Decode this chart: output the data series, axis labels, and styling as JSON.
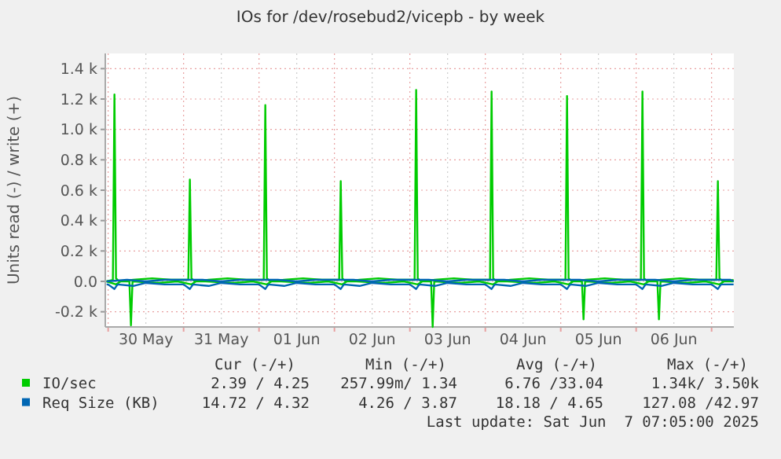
{
  "chart_data": {
    "type": "line",
    "title": "IOs for /dev/rosebud2/vicepb - by week",
    "ylabel": "Units read (-) / write (+)",
    "xlim": [
      "2025-05-29T23:05",
      "2025-06-07T07:05"
    ],
    "xticks": [
      {
        "value": "2025-05-30T00:00",
        "label": null
      },
      {
        "value": "2025-05-30T12:00",
        "label": "30 May"
      },
      {
        "value": "2025-05-31T00:00",
        "label": null
      },
      {
        "value": "2025-05-31T12:00",
        "label": "31 May"
      },
      {
        "value": "2025-06-01T00:00",
        "label": null
      },
      {
        "value": "2025-06-01T12:00",
        "label": "01 Jun"
      },
      {
        "value": "2025-06-02T00:00",
        "label": null
      },
      {
        "value": "2025-06-02T12:00",
        "label": "02 Jun"
      },
      {
        "value": "2025-06-03T00:00",
        "label": null
      },
      {
        "value": "2025-06-03T12:00",
        "label": "03 Jun"
      },
      {
        "value": "2025-06-04T00:00",
        "label": null
      },
      {
        "value": "2025-06-04T12:00",
        "label": "04 Jun"
      },
      {
        "value": "2025-06-05T00:00",
        "label": null
      },
      {
        "value": "2025-06-05T12:00",
        "label": "05 Jun"
      },
      {
        "value": "2025-06-06T00:00",
        "label": null
      },
      {
        "value": "2025-06-06T12:00",
        "label": "06 Jun"
      },
      {
        "value": "2025-06-07T00:00",
        "label": null
      }
    ],
    "ylim": [
      -300,
      1500
    ],
    "yticks": [
      {
        "value": -200,
        "label": "-0.2 k"
      },
      {
        "value": 0,
        "label": "0.0"
      },
      {
        "value": 200,
        "label": "0.2 k"
      },
      {
        "value": 400,
        "label": "0.4 k"
      },
      {
        "value": 600,
        "label": "0.6 k"
      },
      {
        "value": 800,
        "label": "0.8 k"
      },
      {
        "value": 1000,
        "label": "1.0 k"
      },
      {
        "value": 1200,
        "label": "1.2 k"
      },
      {
        "value": 1400,
        "label": "1.4 k"
      }
    ],
    "grid": true,
    "legend": "bottom",
    "line_style": "solid",
    "series": [
      {
        "name": "IO/sec",
        "color": "#00cc00",
        "x": [
          "2025-05-29T23:30",
          "2025-05-30T01:30",
          "2025-05-30T02:00",
          "2025-05-30T02:30",
          "2025-05-30T03:30",
          "2025-05-30T08:00",
          "2025-05-30T14:00",
          "2025-05-30T20:00",
          "2025-05-31T01:30",
          "2025-05-31T02:00",
          "2025-05-31T02:30",
          "2025-05-31T03:30",
          "2025-05-31T08:00",
          "2025-05-31T14:00",
          "2025-05-31T20:00",
          "2025-06-01T01:30",
          "2025-06-01T02:00",
          "2025-06-01T02:30",
          "2025-06-01T03:30",
          "2025-06-01T08:00",
          "2025-06-01T14:00",
          "2025-06-01T20:00",
          "2025-06-02T01:30",
          "2025-06-02T02:00",
          "2025-06-02T02:30",
          "2025-06-02T03:30",
          "2025-06-02T08:00",
          "2025-06-02T14:00",
          "2025-06-02T20:00",
          "2025-06-03T01:30",
          "2025-06-03T02:00",
          "2025-06-03T02:30",
          "2025-06-03T03:30",
          "2025-06-03T08:00",
          "2025-06-03T14:00",
          "2025-06-03T20:00",
          "2025-06-04T01:30",
          "2025-06-04T02:00",
          "2025-06-04T02:30",
          "2025-06-04T03:30",
          "2025-06-04T08:00",
          "2025-06-04T14:00",
          "2025-06-04T20:00",
          "2025-06-05T01:30",
          "2025-06-05T02:00",
          "2025-06-05T02:30",
          "2025-06-05T03:30",
          "2025-06-05T08:00",
          "2025-06-05T14:00",
          "2025-06-05T20:00",
          "2025-06-06T01:30",
          "2025-06-06T02:00",
          "2025-06-06T02:30",
          "2025-06-06T03:30",
          "2025-06-06T08:00",
          "2025-06-06T14:00",
          "2025-06-06T20:00",
          "2025-06-07T01:30",
          "2025-06-07T02:00",
          "2025-06-07T02:30",
          "2025-06-07T03:30",
          "2025-06-07T07:00"
        ],
        "values": [
          0,
          10,
          1230,
          20,
          0,
          10,
          20,
          10,
          10,
          670,
          20,
          0,
          10,
          20,
          10,
          10,
          1160,
          20,
          0,
          10,
          20,
          10,
          10,
          660,
          20,
          0,
          10,
          20,
          10,
          10,
          1260,
          20,
          0,
          10,
          20,
          10,
          10,
          1250,
          20,
          0,
          10,
          20,
          10,
          10,
          1220,
          20,
          0,
          10,
          20,
          10,
          10,
          1250,
          20,
          0,
          10,
          20,
          10,
          10,
          660,
          20,
          0,
          10
        ]
      },
      {
        "color": "#00cc00",
        "x": [
          "2025-05-29T23:30",
          "2025-05-30T02:30",
          "2025-05-30T04:00",
          "2025-05-30T06:45",
          "2025-05-30T07:15",
          "2025-05-30T07:45",
          "2025-05-30T16:00",
          "2025-05-30T22:00",
          "2025-05-31T02:30",
          "2025-05-31T04:00",
          "2025-05-31T07:00",
          "2025-05-31T16:00",
          "2025-05-31T22:00",
          "2025-06-01T02:30",
          "2025-06-01T04:00",
          "2025-06-01T07:00",
          "2025-06-01T16:00",
          "2025-06-01T22:00",
          "2025-06-02T02:30",
          "2025-06-02T04:00",
          "2025-06-02T07:00",
          "2025-06-02T16:00",
          "2025-06-02T22:00",
          "2025-06-03T02:30",
          "2025-06-03T04:00",
          "2025-06-03T06:45",
          "2025-06-03T07:15",
          "2025-06-03T07:45",
          "2025-06-03T16:00",
          "2025-06-03T22:00",
          "2025-06-04T02:30",
          "2025-06-04T04:00",
          "2025-06-04T07:00",
          "2025-06-04T16:00",
          "2025-06-04T22:00",
          "2025-06-05T02:30",
          "2025-06-05T04:00",
          "2025-06-05T06:45",
          "2025-06-05T07:15",
          "2025-06-05T07:45",
          "2025-06-05T16:00",
          "2025-06-05T22:00",
          "2025-06-06T02:30",
          "2025-06-06T04:00",
          "2025-06-06T06:45",
          "2025-06-06T07:15",
          "2025-06-06T07:45",
          "2025-06-06T16:00",
          "2025-06-06T22:00",
          "2025-06-07T02:30",
          "2025-06-07T04:00",
          "2025-06-07T07:00"
        ],
        "values": [
          0,
          -20,
          0,
          0,
          -290,
          0,
          -10,
          0,
          -20,
          0,
          0,
          -10,
          0,
          -20,
          0,
          0,
          -10,
          0,
          -20,
          0,
          0,
          -10,
          0,
          -20,
          0,
          0,
          -300,
          0,
          -10,
          0,
          -20,
          0,
          0,
          -10,
          0,
          -20,
          0,
          0,
          -250,
          0,
          -10,
          0,
          -20,
          0,
          0,
          -250,
          0,
          -10,
          0,
          -20,
          0,
          0
        ]
      },
      {
        "color": "#0066b3",
        "x": [
          "2025-05-29T23:30",
          "2025-05-30T00:00",
          "2025-05-30T02:00",
          "2025-05-30T03:00",
          "2025-05-30T08:00",
          "2025-05-30T12:00",
          "2025-05-30T18:00",
          "2025-05-31T00:00",
          "2025-05-31T02:00",
          "2025-05-31T03:00",
          "2025-05-31T08:00",
          "2025-05-31T12:00",
          "2025-05-31T18:00",
          "2025-06-01T00:00",
          "2025-06-01T02:00",
          "2025-06-01T03:00",
          "2025-06-01T08:00",
          "2025-06-01T12:00",
          "2025-06-01T18:00",
          "2025-06-02T00:00",
          "2025-06-02T02:00",
          "2025-06-02T03:00",
          "2025-06-02T08:00",
          "2025-06-02T12:00",
          "2025-06-02T18:00",
          "2025-06-03T00:00",
          "2025-06-03T02:00",
          "2025-06-03T03:00",
          "2025-06-03T08:00",
          "2025-06-03T12:00",
          "2025-06-03T18:00",
          "2025-06-04T00:00",
          "2025-06-04T02:00",
          "2025-06-04T03:00",
          "2025-06-04T08:00",
          "2025-06-04T12:00",
          "2025-06-04T18:00",
          "2025-06-05T00:00",
          "2025-06-05T02:00",
          "2025-06-05T03:00",
          "2025-06-05T08:00",
          "2025-06-05T12:00",
          "2025-06-05T18:00",
          "2025-06-06T00:00",
          "2025-06-06T02:00",
          "2025-06-06T03:00",
          "2025-06-06T08:00",
          "2025-06-06T12:00",
          "2025-06-06T18:00",
          "2025-06-07T00:00",
          "2025-06-07T02:00",
          "2025-06-07T03:00",
          "2025-06-07T07:00"
        ],
        "values": [
          -20,
          -20,
          -50,
          -20,
          -30,
          -10,
          -20,
          -20,
          -50,
          -20,
          -30,
          -10,
          -20,
          -20,
          -50,
          -20,
          -30,
          -10,
          -20,
          -20,
          -50,
          -20,
          -30,
          -10,
          -20,
          -20,
          -50,
          -20,
          -30,
          -10,
          -20,
          -20,
          -50,
          -20,
          -30,
          -10,
          -20,
          -20,
          -50,
          -20,
          -30,
          -10,
          -20,
          -20,
          -50,
          -20,
          -30,
          -10,
          -20,
          -20,
          -50,
          -20,
          -20
        ]
      },
      {
        "name": "Req Size (KB)",
        "color": "#0066b3",
        "x": [
          "2025-05-29T23:30",
          "2025-05-30T06:00",
          "2025-05-30T12:00",
          "2025-05-30T18:00",
          "2025-05-31T06:00",
          "2025-05-31T12:00",
          "2025-05-31T18:00",
          "2025-06-01T06:00",
          "2025-06-01T12:00",
          "2025-06-01T18:00",
          "2025-06-02T06:00",
          "2025-06-02T12:00",
          "2025-06-02T18:00",
          "2025-06-03T06:00",
          "2025-06-03T12:00",
          "2025-06-03T18:00",
          "2025-06-04T06:00",
          "2025-06-04T12:00",
          "2025-06-04T18:00",
          "2025-06-05T06:00",
          "2025-06-05T12:00",
          "2025-06-05T18:00",
          "2025-06-06T06:00",
          "2025-06-06T12:00",
          "2025-06-06T18:00",
          "2025-06-07T06:00",
          "2025-06-07T07:00"
        ],
        "values": [
          0,
          10,
          0,
          10,
          10,
          0,
          10,
          10,
          0,
          10,
          10,
          0,
          10,
          10,
          0,
          10,
          10,
          0,
          10,
          10,
          0,
          10,
          10,
          0,
          10,
          10,
          0
        ]
      }
    ],
    "annotations": [
      "Cur (-/+)",
      "Min (-/+)",
      "Avg (-/+)",
      "Max (-/+)",
      "2.39 / 4.25",
      "257.99m/ 1.34",
      "6.76 /33.04",
      "1.34k/ 3.50k",
      "14.72 / 4.32",
      "4.26 / 3.87",
      "18.18 / 4.65",
      "127.08 /42.97",
      "Last update: Sat Jun  7 07:05:00 2025"
    ]
  }
}
